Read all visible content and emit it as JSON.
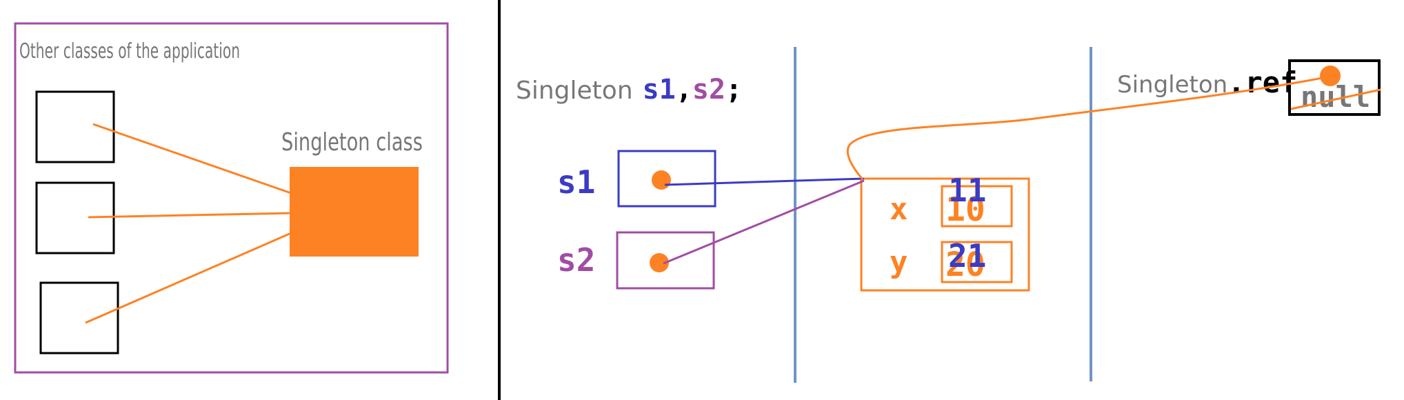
{
  "left_panel": {
    "title": "Other classes of the application",
    "singleton_label": "Singleton class"
  },
  "code": {
    "type_word": "Singleton",
    "var_s1": "s1",
    "comma": ",",
    "var_s2": "s2",
    "semicolon": ";"
  },
  "references": [
    {
      "label": "s1"
    },
    {
      "label": "s2"
    }
  ],
  "object_fields": [
    {
      "name": "x",
      "old_value": "10",
      "new_value": "11"
    },
    {
      "name": "y",
      "old_value": "20",
      "new_value": "21"
    }
  ],
  "static_ref": {
    "class_name": "Singleton",
    "field": ".ref",
    "old_value": "null"
  },
  "colors": {
    "orange": "#fd8224",
    "purple": "#a14ca5",
    "blue": "#3b3bc4",
    "gray": "#777777",
    "divider_blue": "#6f95c4",
    "black": "#000000"
  }
}
